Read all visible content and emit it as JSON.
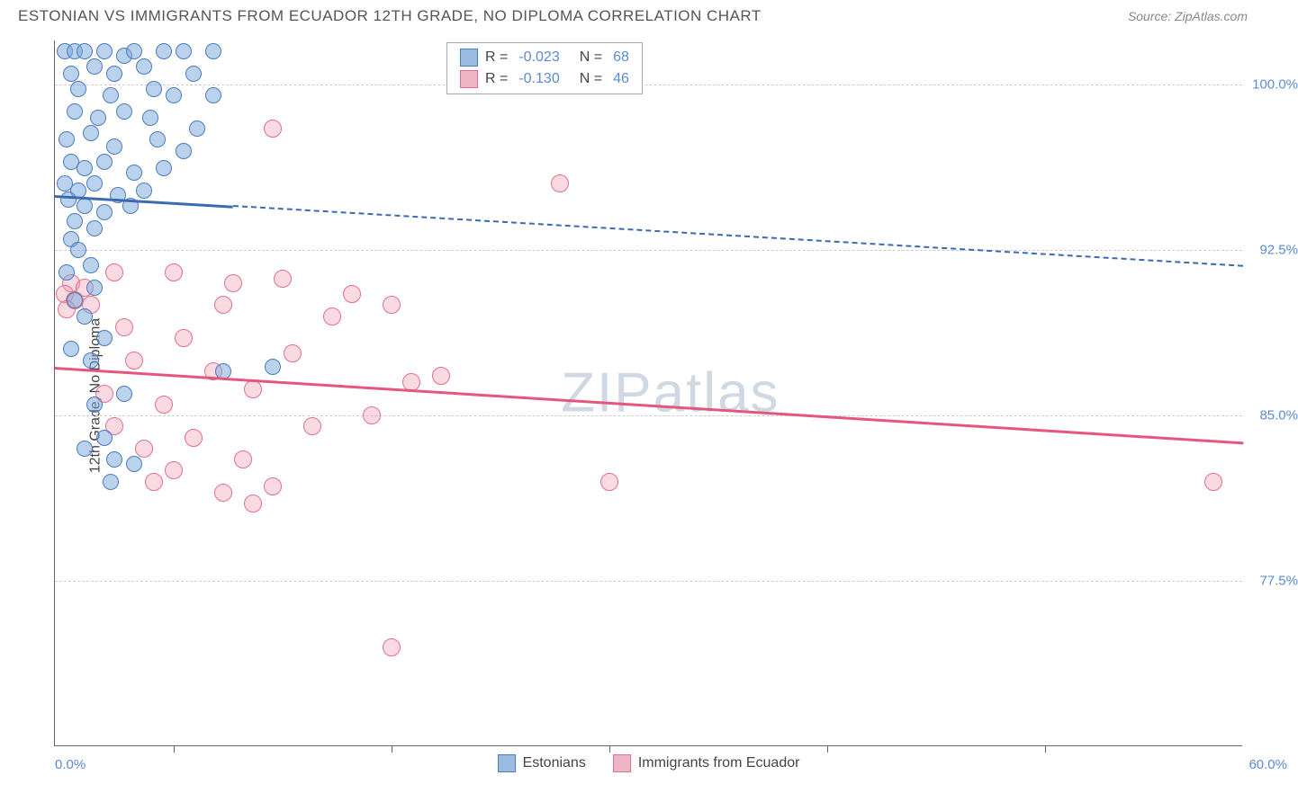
{
  "header": {
    "title": "ESTONIAN VS IMMIGRANTS FROM ECUADOR 12TH GRADE, NO DIPLOMA CORRELATION CHART",
    "source": "Source: ZipAtlas.com"
  },
  "chart": {
    "type": "scatter",
    "ylabel": "12th Grade, No Diploma",
    "watermark": "ZIPatlas",
    "xlim": [
      0,
      60
    ],
    "ylim": [
      70,
      102
    ],
    "x_range_labels": {
      "min": "0.0%",
      "max": "60.0%"
    },
    "x_tick_positions": [
      6,
      17,
      28,
      39,
      50
    ],
    "y_gridlines": [
      {
        "value": 100.0,
        "label": "100.0%"
      },
      {
        "value": 92.5,
        "label": "92.5%"
      },
      {
        "value": 85.0,
        "label": "85.0%"
      },
      {
        "value": 77.5,
        "label": "77.5%"
      }
    ],
    "grid_color": "#cccccc",
    "background_color": "#ffffff",
    "series": {
      "estonians": {
        "label": "Estonians",
        "color_fill": "#9bbce0",
        "color_stroke": "#4a7bc0",
        "R": "-0.023",
        "N": "68",
        "trend": {
          "y_start": 95.0,
          "y_end": 91.8,
          "solid_until_x": 9,
          "color": "#3a6bb0"
        },
        "points": [
          [
            0.5,
            101.5
          ],
          [
            1.0,
            101.5
          ],
          [
            1.5,
            101.5
          ],
          [
            2.5,
            101.5
          ],
          [
            3.5,
            101.3
          ],
          [
            4.0,
            101.5
          ],
          [
            5.5,
            101.5
          ],
          [
            6.5,
            101.5
          ],
          [
            8.0,
            101.5
          ],
          [
            0.8,
            100.5
          ],
          [
            2.0,
            100.8
          ],
          [
            3.0,
            100.5
          ],
          [
            4.5,
            100.8
          ],
          [
            7.0,
            100.5
          ],
          [
            1.2,
            99.8
          ],
          [
            2.8,
            99.5
          ],
          [
            5.0,
            99.8
          ],
          [
            6.0,
            99.5
          ],
          [
            8.0,
            99.5
          ],
          [
            1.0,
            98.8
          ],
          [
            2.2,
            98.5
          ],
          [
            3.5,
            98.8
          ],
          [
            4.8,
            98.5
          ],
          [
            7.2,
            98.0
          ],
          [
            0.6,
            97.5
          ],
          [
            1.8,
            97.8
          ],
          [
            3.0,
            97.2
          ],
          [
            5.2,
            97.5
          ],
          [
            6.5,
            97.0
          ],
          [
            0.8,
            96.5
          ],
          [
            1.5,
            96.2
          ],
          [
            2.5,
            96.5
          ],
          [
            4.0,
            96.0
          ],
          [
            5.5,
            96.2
          ],
          [
            0.5,
            95.5
          ],
          [
            1.2,
            95.2
          ],
          [
            2.0,
            95.5
          ],
          [
            3.2,
            95.0
          ],
          [
            4.5,
            95.2
          ],
          [
            0.7,
            94.8
          ],
          [
            1.5,
            94.5
          ],
          [
            2.5,
            94.2
          ],
          [
            3.8,
            94.5
          ],
          [
            1.0,
            93.8
          ],
          [
            2.0,
            93.5
          ],
          [
            0.8,
            93.0
          ],
          [
            1.2,
            92.5
          ],
          [
            1.8,
            91.8
          ],
          [
            0.6,
            91.5
          ],
          [
            2.0,
            90.8
          ],
          [
            1.0,
            90.2
          ],
          [
            1.5,
            89.5
          ],
          [
            2.5,
            88.5
          ],
          [
            0.8,
            88.0
          ],
          [
            1.8,
            87.5
          ],
          [
            8.5,
            87.0
          ],
          [
            11.0,
            87.2
          ],
          [
            3.5,
            86.0
          ],
          [
            2.0,
            85.5
          ],
          [
            2.5,
            84.0
          ],
          [
            1.5,
            83.5
          ],
          [
            3.0,
            83.0
          ],
          [
            4.0,
            82.8
          ],
          [
            2.8,
            82.0
          ]
        ]
      },
      "immigrants": {
        "label": "Immigrants from Ecuador",
        "color_fill": "#f0b5c5",
        "color_stroke": "#e07090",
        "R": "-0.130",
        "N": "46",
        "trend": {
          "y_start": 87.2,
          "y_end": 83.8,
          "solid_until_x": 60,
          "color": "#e5567d"
        },
        "points": [
          [
            0.8,
            91.0
          ],
          [
            1.5,
            90.8
          ],
          [
            0.5,
            90.5
          ],
          [
            1.0,
            90.2
          ],
          [
            1.8,
            90.0
          ],
          [
            0.6,
            89.8
          ],
          [
            3.0,
            91.5
          ],
          [
            6.0,
            91.5
          ],
          [
            9.0,
            91.0
          ],
          [
            11.5,
            91.2
          ],
          [
            8.5,
            90.0
          ],
          [
            15.0,
            90.5
          ],
          [
            17.0,
            90.0
          ],
          [
            11.0,
            98.0
          ],
          [
            3.5,
            89.0
          ],
          [
            6.5,
            88.5
          ],
          [
            14.0,
            89.5
          ],
          [
            4.0,
            87.5
          ],
          [
            8.0,
            87.0
          ],
          [
            12.0,
            87.8
          ],
          [
            18.0,
            86.5
          ],
          [
            2.5,
            86.0
          ],
          [
            5.5,
            85.5
          ],
          [
            10.0,
            86.2
          ],
          [
            16.0,
            85.0
          ],
          [
            19.5,
            86.8
          ],
          [
            3.0,
            84.5
          ],
          [
            7.0,
            84.0
          ],
          [
            13.0,
            84.5
          ],
          [
            4.5,
            83.5
          ],
          [
            9.5,
            83.0
          ],
          [
            6.0,
            82.5
          ],
          [
            5.0,
            82.0
          ],
          [
            8.5,
            81.5
          ],
          [
            11.0,
            81.8
          ],
          [
            10.0,
            81.0
          ],
          [
            28.0,
            82.0
          ],
          [
            58.5,
            82.0
          ],
          [
            25.5,
            95.5
          ],
          [
            17.0,
            74.5
          ]
        ]
      }
    },
    "legend": {
      "rows": [
        {
          "swatch_fill": "#9bbce0",
          "swatch_stroke": "#4a7bc0",
          "R_label": "R =",
          "R_val": "-0.023",
          "N_label": "N =",
          "N_val": "68"
        },
        {
          "swatch_fill": "#f0b5c5",
          "swatch_stroke": "#e07090",
          "R_label": "R =",
          "R_val": "-0.130",
          "N_label": "N =",
          "N_val": "46"
        }
      ]
    }
  }
}
